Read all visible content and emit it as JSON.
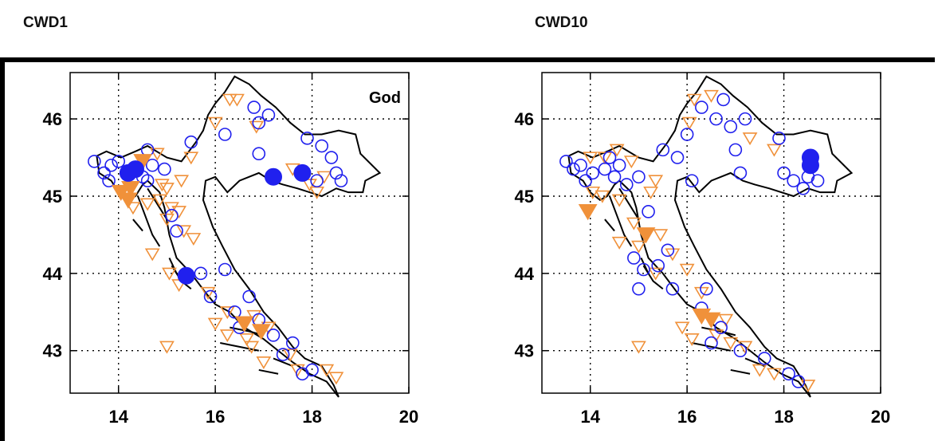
{
  "panels": [
    {
      "title": "CWD1",
      "label": "God",
      "x_ticks": [
        "14",
        "16",
        "18",
        "20"
      ],
      "y_ticks": [
        "46",
        "45",
        "44",
        "43"
      ],
      "significant_increase": [
        [
          14.2,
          45.3
        ],
        [
          14.35,
          45.35
        ],
        [
          17.2,
          45.25
        ],
        [
          17.8,
          45.3
        ],
        [
          15.4,
          43.97
        ]
      ],
      "significant_decrease": [
        [
          14.5,
          45.45
        ],
        [
          14.05,
          45.05
        ],
        [
          14.2,
          44.95
        ],
        [
          16.6,
          43.35
        ],
        [
          16.95,
          43.25
        ],
        [
          14.25,
          45.1
        ]
      ],
      "increase": [
        [
          13.5,
          45.45
        ],
        [
          13.7,
          45.3
        ],
        [
          13.85,
          45.4
        ],
        [
          14.0,
          45.45
        ],
        [
          13.8,
          45.2
        ],
        [
          14.6,
          45.6
        ],
        [
          14.7,
          45.4
        ],
        [
          14.6,
          45.2
        ],
        [
          14.95,
          45.35
        ],
        [
          14.5,
          45.25
        ],
        [
          15.5,
          45.7
        ],
        [
          16.2,
          45.8
        ],
        [
          16.8,
          46.15
        ],
        [
          17.1,
          46.05
        ],
        [
          16.9,
          45.95
        ],
        [
          17.9,
          45.75
        ],
        [
          18.2,
          45.65
        ],
        [
          18.4,
          45.5
        ],
        [
          18.5,
          45.3
        ],
        [
          18.6,
          45.2
        ],
        [
          18.1,
          45.2
        ],
        [
          16.9,
          45.55
        ],
        [
          15.2,
          44.55
        ],
        [
          15.1,
          44.75
        ],
        [
          15.7,
          44.0
        ],
        [
          16.2,
          44.05
        ],
        [
          15.9,
          43.7
        ],
        [
          16.4,
          43.5
        ],
        [
          16.7,
          43.7
        ],
        [
          16.5,
          43.3
        ],
        [
          17.2,
          43.2
        ],
        [
          17.6,
          43.1
        ],
        [
          18.0,
          42.75
        ],
        [
          17.8,
          42.7
        ],
        [
          16.9,
          43.4
        ],
        [
          17.4,
          42.95
        ]
      ],
      "decrease": [
        [
          14.8,
          45.55
        ],
        [
          15.3,
          45.2
        ],
        [
          14.9,
          45.15
        ],
        [
          15.5,
          45.5
        ],
        [
          16.3,
          46.25
        ],
        [
          16.45,
          46.25
        ],
        [
          16.0,
          45.95
        ],
        [
          16.85,
          45.9
        ],
        [
          17.6,
          45.35
        ],
        [
          17.95,
          45.15
        ],
        [
          18.25,
          45.25
        ],
        [
          15.1,
          44.85
        ],
        [
          15.25,
          44.8
        ],
        [
          15.35,
          44.55
        ],
        [
          14.85,
          44.95
        ],
        [
          14.6,
          44.9
        ],
        [
          15.0,
          44.7
        ],
        [
          14.7,
          44.25
        ],
        [
          15.05,
          44.0
        ],
        [
          15.25,
          43.85
        ],
        [
          15.55,
          44.45
        ],
        [
          15.85,
          43.75
        ],
        [
          16.25,
          43.5
        ],
        [
          16.75,
          43.05
        ],
        [
          17.0,
          42.85
        ],
        [
          17.55,
          42.95
        ],
        [
          17.7,
          42.75
        ],
        [
          18.3,
          42.75
        ],
        [
          18.5,
          42.65
        ],
        [
          15.0,
          43.05
        ],
        [
          16.0,
          43.35
        ],
        [
          16.8,
          43.45
        ],
        [
          17.1,
          43.3
        ],
        [
          16.65,
          43.15
        ],
        [
          18.1,
          45.05
        ],
        [
          15.0,
          45.1
        ],
        [
          14.3,
          44.85
        ],
        [
          16.25,
          43.2
        ]
      ]
    },
    {
      "title": "CWD10",
      "label": "",
      "x_ticks": [
        "14",
        "16",
        "18",
        "20"
      ],
      "y_ticks": [
        "46",
        "45",
        "44",
        "43"
      ],
      "significant_increase": [
        [
          18.55,
          45.5
        ],
        [
          18.55,
          45.4
        ]
      ],
      "significant_decrease": [
        [
          13.95,
          44.8
        ],
        [
          15.15,
          44.5
        ],
        [
          16.3,
          43.45
        ],
        [
          16.5,
          43.4
        ]
      ],
      "increase": [
        [
          13.5,
          45.45
        ],
        [
          13.65,
          45.35
        ],
        [
          13.8,
          45.4
        ],
        [
          13.9,
          45.2
        ],
        [
          14.05,
          45.3
        ],
        [
          14.3,
          45.35
        ],
        [
          14.4,
          45.5
        ],
        [
          14.6,
          45.4
        ],
        [
          14.75,
          45.15
        ],
        [
          15.0,
          45.25
        ],
        [
          14.5,
          45.25
        ],
        [
          15.5,
          45.6
        ],
        [
          15.8,
          45.5
        ],
        [
          16.0,
          45.8
        ],
        [
          16.3,
          46.15
        ],
        [
          16.6,
          46.0
        ],
        [
          16.75,
          46.25
        ],
        [
          16.9,
          45.9
        ],
        [
          17.2,
          46.0
        ],
        [
          17.0,
          45.6
        ],
        [
          17.9,
          45.75
        ],
        [
          18.0,
          45.3
        ],
        [
          18.2,
          45.2
        ],
        [
          18.4,
          45.1
        ],
        [
          18.5,
          45.25
        ],
        [
          18.7,
          45.2
        ],
        [
          17.1,
          45.3
        ],
        [
          16.1,
          45.2
        ],
        [
          15.2,
          44.8
        ],
        [
          14.9,
          44.2
        ],
        [
          15.1,
          44.05
        ],
        [
          15.4,
          44.1
        ],
        [
          15.6,
          44.3
        ],
        [
          15.7,
          43.8
        ],
        [
          16.3,
          43.55
        ],
        [
          16.7,
          43.3
        ],
        [
          16.5,
          43.1
        ],
        [
          17.1,
          43.0
        ],
        [
          17.6,
          42.9
        ],
        [
          18.1,
          42.7
        ],
        [
          18.3,
          42.6
        ],
        [
          16.4,
          43.8
        ],
        [
          15.0,
          43.8
        ]
      ],
      "decrease": [
        [
          14.0,
          45.5
        ],
        [
          14.3,
          45.5
        ],
        [
          14.55,
          45.6
        ],
        [
          14.85,
          45.45
        ],
        [
          15.35,
          45.2
        ],
        [
          15.25,
          45.05
        ],
        [
          14.25,
          45.0
        ],
        [
          14.05,
          45.05
        ],
        [
          14.6,
          44.95
        ],
        [
          14.9,
          44.65
        ],
        [
          14.6,
          44.4
        ],
        [
          15.0,
          44.35
        ],
        [
          15.45,
          44.5
        ],
        [
          15.7,
          44.25
        ],
        [
          15.35,
          44.0
        ],
        [
          15.0,
          43.05
        ],
        [
          15.9,
          43.3
        ],
        [
          16.1,
          43.15
        ],
        [
          16.6,
          43.2
        ],
        [
          16.9,
          43.1
        ],
        [
          17.2,
          43.05
        ],
        [
          17.5,
          42.75
        ],
        [
          17.8,
          42.7
        ],
        [
          18.5,
          42.55
        ],
        [
          16.05,
          45.95
        ],
        [
          16.15,
          46.25
        ],
        [
          16.5,
          46.3
        ],
        [
          17.3,
          45.75
        ],
        [
          17.8,
          45.6
        ],
        [
          16.0,
          44.05
        ],
        [
          16.3,
          43.75
        ],
        [
          16.8,
          43.4
        ]
      ]
    }
  ],
  "colors": {
    "increase": "#2020ee",
    "decrease": "#f0913a",
    "border": "#000000"
  }
}
